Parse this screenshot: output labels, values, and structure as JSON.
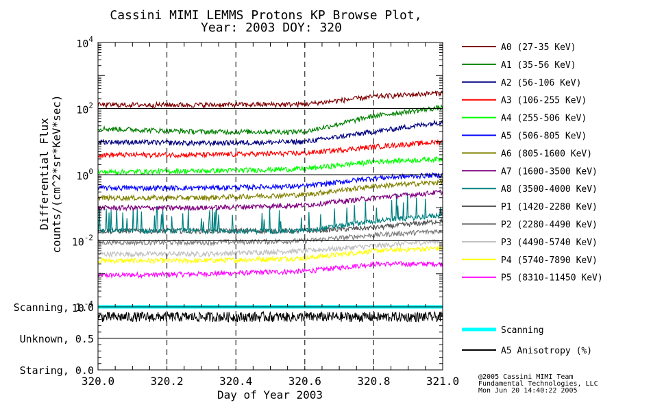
{
  "chart_data": {
    "type": "line",
    "title": "Cassini MIMI LEMMS Protons KP Browse Plot,",
    "subtitle": "Year: 2003 DOY: 320",
    "xlabel": "Day of Year 2003",
    "ylabel_line1": "Differential Flux",
    "ylabel_line2": "counts/(cm^2*sr*KeV*sec)",
    "xlim": [
      320.0,
      321.0
    ],
    "x_ticks": [
      "320.0",
      "320.2",
      "320.4",
      "320.6",
      "320.8",
      "321.0"
    ],
    "x_tick_values": [
      320.0,
      320.2,
      320.4,
      320.6,
      320.8,
      321.0
    ],
    "y_scale": "log",
    "ylim": [
      0.0001,
      10000
    ],
    "y_ticks": [
      {
        "base": "10",
        "exp": "4"
      },
      {
        "base": "10",
        "exp": "2"
      },
      {
        "base": "10",
        "exp": "0"
      },
      {
        "base": "10",
        "exp": "-2"
      },
      {
        "base": "10",
        "exp": "-4"
      }
    ],
    "grid_dashed_x": [
      320.2,
      320.4,
      320.6,
      320.8
    ],
    "series": [
      {
        "name": "A0 (27-35 KeV)",
        "color": "#800000",
        "level": [
          130,
          130,
          135,
          230,
          300
        ]
      },
      {
        "name": "A1 (35-56 KeV)",
        "color": "#008000",
        "level": [
          25,
          20,
          20,
          60,
          110
        ]
      },
      {
        "name": "A2 (56-106 KeV)",
        "color": "#000080",
        "level": [
          10,
          9,
          10,
          20,
          40
        ]
      },
      {
        "name": "A3 (106-255 KeV)",
        "color": "#ff0000",
        "level": [
          4,
          4,
          4.5,
          7,
          10
        ]
      },
      {
        "name": "A4 (255-506 KeV)",
        "color": "#00ff00",
        "level": [
          1.2,
          1.3,
          1.5,
          2.5,
          3
        ]
      },
      {
        "name": "A5 (506-805 KeV)",
        "color": "#0000ff",
        "level": [
          0.4,
          0.4,
          0.45,
          0.8,
          1
        ]
      },
      {
        "name": "A6 (805-1600 KeV)",
        "color": "#808000",
        "level": [
          0.2,
          0.2,
          0.25,
          0.45,
          0.6
        ]
      },
      {
        "name": "A7 (1600-3500 KeV)",
        "color": "#800080",
        "level": [
          0.1,
          0.1,
          0.12,
          0.2,
          0.3
        ]
      },
      {
        "name": "A8 (3500-4000 KeV)",
        "color": "#008080",
        "level": [
          0.02,
          0.02,
          0.02,
          0.04,
          0.06
        ]
      },
      {
        "name": "P1 (1420-2280 KeV)",
        "color": "#555555",
        "level": [
          0.02,
          0.02,
          0.02,
          0.025,
          0.04
        ]
      },
      {
        "name": "P2 (2280-4490 KeV)",
        "color": "#808080",
        "level": [
          0.009,
          0.009,
          0.01,
          0.015,
          0.02
        ]
      },
      {
        "name": "P3 (4490-5740 KeV)",
        "color": "#c0c0c0",
        "level": [
          0.004,
          0.004,
          0.005,
          0.007,
          0.01
        ]
      },
      {
        "name": "P4 (5740-7890 KeV)",
        "color": "#ffff00",
        "level": [
          0.0025,
          0.0025,
          0.003,
          0.005,
          0.006
        ]
      },
      {
        "name": "P5 (8310-11450 KeV)",
        "color": "#ff00ff",
        "level": [
          0.0009,
          0.001,
          0.0012,
          0.002,
          0.002
        ]
      }
    ],
    "lower_panel": {
      "y_ticks": [
        "Scanning, 1.0",
        "Unknown, 0.5",
        "Staring, 0.0"
      ],
      "y_tick_values": [
        1.0,
        0.5,
        0.0
      ],
      "ylim": [
        0.0,
        1.0
      ],
      "scanning_value": 1.0,
      "anisotropy_mean": 0.84,
      "series": [
        {
          "name": "Scanning",
          "color": "#00ffff"
        },
        {
          "name": "A5 Anisotropy (%)",
          "color": "#000000"
        }
      ]
    }
  },
  "credits": [
    "@2005 Cassini MIMI Team",
    "Fundamental Technologies, LLC",
    "Mon Jun 20 14:40:22 2005"
  ]
}
